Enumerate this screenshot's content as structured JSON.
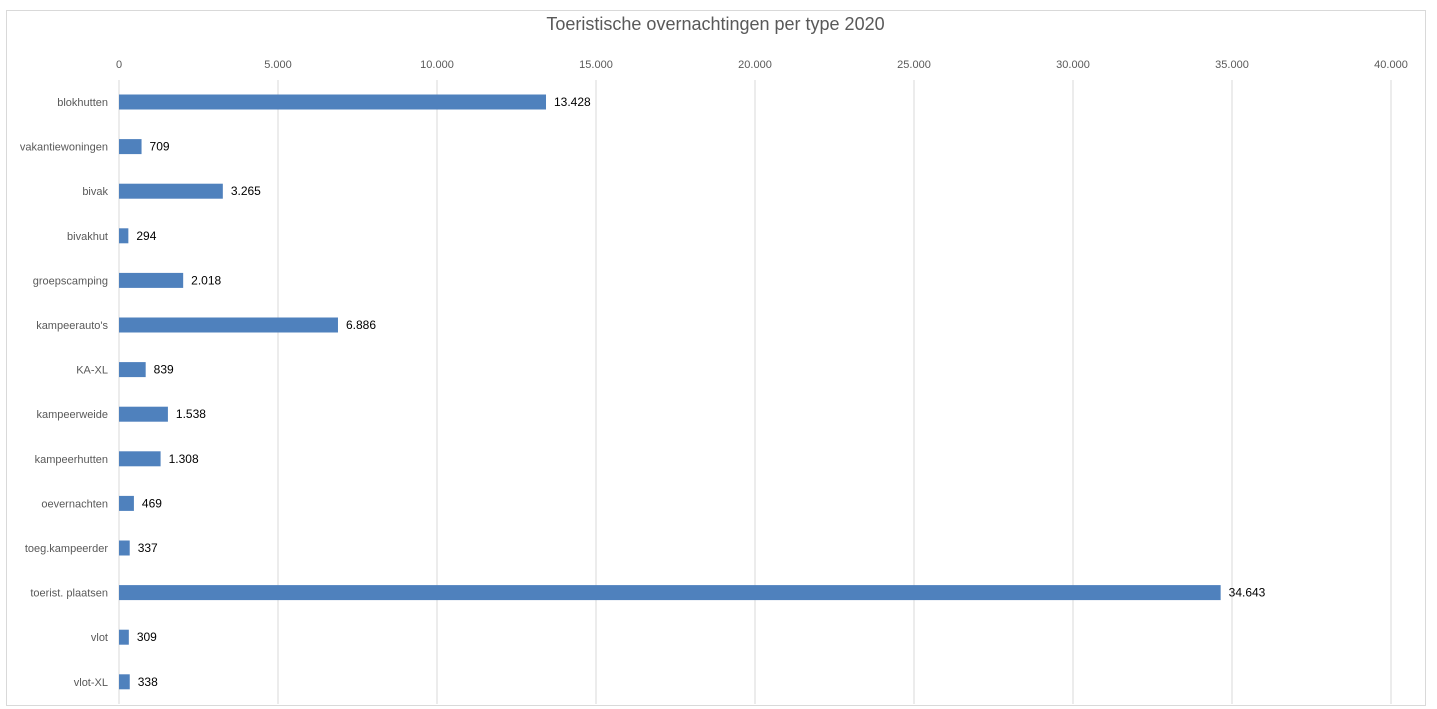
{
  "chart_data": {
    "type": "bar",
    "orientation": "horizontal",
    "title": "Toeristische overnachtingen per type 2020",
    "xlabel": "",
    "ylabel": "",
    "xlim": [
      0,
      40000
    ],
    "ticks": [
      {
        "value": 0,
        "label": "0"
      },
      {
        "value": 5000,
        "label": "5.000"
      },
      {
        "value": 10000,
        "label": "10.000"
      },
      {
        "value": 15000,
        "label": "15.000"
      },
      {
        "value": 20000,
        "label": "20.000"
      },
      {
        "value": 25000,
        "label": "25.000"
      },
      {
        "value": 30000,
        "label": "30.000"
      },
      {
        "value": 35000,
        "label": "35.000"
      },
      {
        "value": 40000,
        "label": "40.000"
      }
    ],
    "categories": [
      "blokhutten",
      "vakantiewoningen",
      "bivak",
      "bivakhut",
      "groepscamping",
      "kampeerauto's",
      "KA-XL",
      "kampeerweide",
      "kampeerhutten",
      "oevernachten",
      "toeg.kampeerder",
      "toerist. plaatsen",
      "vlot",
      "vlot-XL"
    ],
    "values": [
      13428,
      709,
      3265,
      294,
      2018,
      6886,
      839,
      1538,
      1308,
      469,
      337,
      34643,
      309,
      338
    ],
    "value_labels": [
      "13.428",
      "709",
      "3.265",
      "294",
      "2.018",
      "6.886",
      "839",
      "1.538",
      "1.308",
      "469",
      "337",
      "34.643",
      "309",
      "338"
    ],
    "grid": true,
    "legend": "none",
    "bar_color": "#4f81bd",
    "grid_color": "#d9d9d9"
  }
}
